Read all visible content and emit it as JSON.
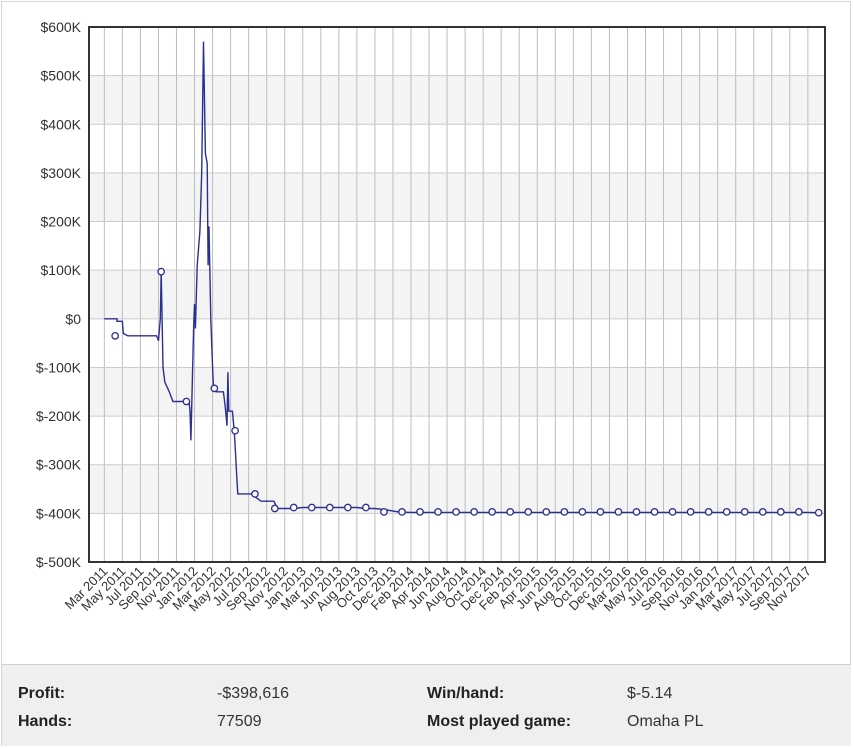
{
  "chart_data": {
    "type": "line",
    "title": "",
    "xlabel": "",
    "ylabel": "",
    "ylim": [
      -500000,
      600000
    ],
    "y_ticks": [
      {
        "value": 600000,
        "label": "$600K"
      },
      {
        "value": 500000,
        "label": "$500K"
      },
      {
        "value": 400000,
        "label": "$400K"
      },
      {
        "value": 300000,
        "label": "$300K"
      },
      {
        "value": 200000,
        "label": "$200K"
      },
      {
        "value": 100000,
        "label": "$100K"
      },
      {
        "value": 0,
        "label": "$0"
      },
      {
        "value": -100000,
        "label": "$-100K"
      },
      {
        "value": -200000,
        "label": "$-200K"
      },
      {
        "value": -300000,
        "label": "$-300K"
      },
      {
        "value": -400000,
        "label": "$-400K"
      },
      {
        "value": -500000,
        "label": "$-500K"
      }
    ],
    "x_tick_labels": [
      "Mar 2011",
      "May 2011",
      "Jul 2011",
      "Sep 2011",
      "Nov 2011",
      "Jan 2012",
      "Mar 2012",
      "May 2012",
      "Jul 2012",
      "Sep 2012",
      "Nov 2012",
      "Jan 2013",
      "Mar 2013",
      "Jun 2013",
      "Aug 2013",
      "Oct 2013",
      "Dec 2013",
      "Feb 2014",
      "Apr 2014",
      "Jun 2014",
      "Aug 2014",
      "Oct 2014",
      "Dec 2014",
      "Feb 2015",
      "Apr 2015",
      "Jun 2015",
      "Aug 2015",
      "Oct 2015",
      "Dec 2015",
      "Mar 2016",
      "May 2016",
      "Jul 2016",
      "Sep 2016",
      "Nov 2016",
      "Jan 2017",
      "Mar 2017",
      "May 2017",
      "Jul 2017",
      "Sep 2017",
      "Nov 2017"
    ],
    "grid": true,
    "legend": "none",
    "line_color": "#2b2f8f",
    "series": [
      {
        "points": [
          [
            0.0,
            0
          ],
          [
            0.7,
            0
          ],
          [
            0.7,
            -5000
          ],
          [
            1.0,
            -5000
          ],
          [
            1.05,
            -30000
          ],
          [
            1.3,
            -35000
          ],
          [
            1.6,
            -35000
          ],
          [
            2.0,
            -35000
          ],
          [
            2.6,
            -35000
          ],
          [
            2.9,
            -35000
          ],
          [
            3.0,
            -45000
          ],
          [
            3.1,
            0
          ],
          [
            3.15,
            97000
          ],
          [
            3.25,
            -100000
          ],
          [
            3.35,
            -130000
          ],
          [
            3.6,
            -150000
          ],
          [
            3.8,
            -170000
          ],
          [
            4.3,
            -170000
          ],
          [
            4.7,
            -170000
          ],
          [
            4.75,
            -190000
          ],
          [
            4.8,
            -250000
          ],
          [
            4.95,
            -20000
          ],
          [
            5.0,
            30000
          ],
          [
            5.05,
            -20000
          ],
          [
            5.15,
            110000
          ],
          [
            5.3,
            180000
          ],
          [
            5.4,
            300000
          ],
          [
            5.5,
            570000
          ],
          [
            5.6,
            340000
          ],
          [
            5.7,
            320000
          ],
          [
            5.75,
            110000
          ],
          [
            5.8,
            190000
          ],
          [
            5.9,
            0
          ],
          [
            6.0,
            -100000
          ],
          [
            6.05,
            -145000
          ],
          [
            6.2,
            -150000
          ],
          [
            6.4,
            -150000
          ],
          [
            6.6,
            -150000
          ],
          [
            6.7,
            -180000
          ],
          [
            6.8,
            -220000
          ],
          [
            6.85,
            -110000
          ],
          [
            6.9,
            -190000
          ],
          [
            7.1,
            -190000
          ],
          [
            7.2,
            -230000
          ],
          [
            7.25,
            -260000
          ],
          [
            7.35,
            -330000
          ],
          [
            7.4,
            -360000
          ],
          [
            7.8,
            -360000
          ],
          [
            8.0,
            -360000
          ],
          [
            8.2,
            -360000
          ],
          [
            8.3,
            -365000
          ],
          [
            8.7,
            -375000
          ],
          [
            9.4,
            -375000
          ],
          [
            9.6,
            -390000
          ],
          [
            10.0,
            -390000
          ],
          [
            10.5,
            -390000
          ],
          [
            11.0,
            -388000
          ],
          [
            12.0,
            -388000
          ],
          [
            13.0,
            -388000
          ],
          [
            14.0,
            -388000
          ],
          [
            14.5,
            -390000
          ],
          [
            15.0,
            -390000
          ],
          [
            15.5,
            -392000
          ],
          [
            16.3,
            -397000
          ],
          [
            17.0,
            -398000
          ],
          [
            18.0,
            -398000
          ],
          [
            19.0,
            -398000
          ],
          [
            20.0,
            -398000
          ],
          [
            21.0,
            -398000
          ],
          [
            22.0,
            -398000
          ],
          [
            23.0,
            -398000
          ],
          [
            24.0,
            -398000
          ],
          [
            25.0,
            -398000
          ],
          [
            26.0,
            -398000
          ],
          [
            27.0,
            -398000
          ],
          [
            28.0,
            -398000
          ],
          [
            29.0,
            -398000
          ],
          [
            30.0,
            -398000
          ],
          [
            31.0,
            -398000
          ],
          [
            32.0,
            -398000
          ],
          [
            33.0,
            -398000
          ],
          [
            34.0,
            -398000
          ],
          [
            35.0,
            -398000
          ],
          [
            36.0,
            -398000
          ],
          [
            37.0,
            -398000
          ],
          [
            38.0,
            -398000
          ],
          [
            39.0,
            -398000
          ],
          [
            39.6,
            -398616
          ]
        ],
        "markers": [
          [
            0.6,
            -35000
          ],
          [
            3.15,
            97000
          ],
          [
            4.55,
            -170000
          ],
          [
            6.1,
            -143000
          ],
          [
            7.25,
            -230000
          ],
          [
            8.35,
            -360000
          ],
          [
            9.45,
            -390000
          ],
          [
            10.5,
            -388000
          ],
          [
            11.5,
            -388000
          ],
          [
            12.5,
            -388000
          ],
          [
            13.5,
            -388000
          ],
          [
            14.5,
            -388000
          ],
          [
            15.5,
            -397000
          ],
          [
            16.5,
            -397000
          ],
          [
            17.5,
            -397000
          ],
          [
            18.5,
            -397000
          ],
          [
            19.5,
            -397000
          ],
          [
            20.5,
            -397000
          ],
          [
            21.5,
            -397000
          ],
          [
            22.5,
            -397000
          ],
          [
            23.5,
            -397000
          ],
          [
            24.5,
            -397000
          ],
          [
            25.5,
            -397000
          ],
          [
            26.5,
            -397000
          ],
          [
            27.5,
            -397000
          ],
          [
            28.5,
            -397000
          ],
          [
            29.5,
            -397000
          ],
          [
            30.5,
            -397000
          ],
          [
            31.5,
            -397000
          ],
          [
            32.5,
            -397000
          ],
          [
            33.5,
            -397000
          ],
          [
            34.5,
            -397000
          ],
          [
            35.5,
            -397000
          ],
          [
            36.5,
            -397000
          ],
          [
            37.5,
            -397000
          ],
          [
            38.5,
            -397000
          ],
          [
            39.6,
            -398616
          ]
        ]
      }
    ]
  },
  "stats": {
    "profit_label": "Profit:",
    "profit_value": "-$398,616",
    "hands_label": "Hands:",
    "hands_value": "77509",
    "winhand_label": "Win/hand:",
    "winhand_value": "$-5.14",
    "game_label": "Most played game:",
    "game_value": "Omaha PL"
  }
}
